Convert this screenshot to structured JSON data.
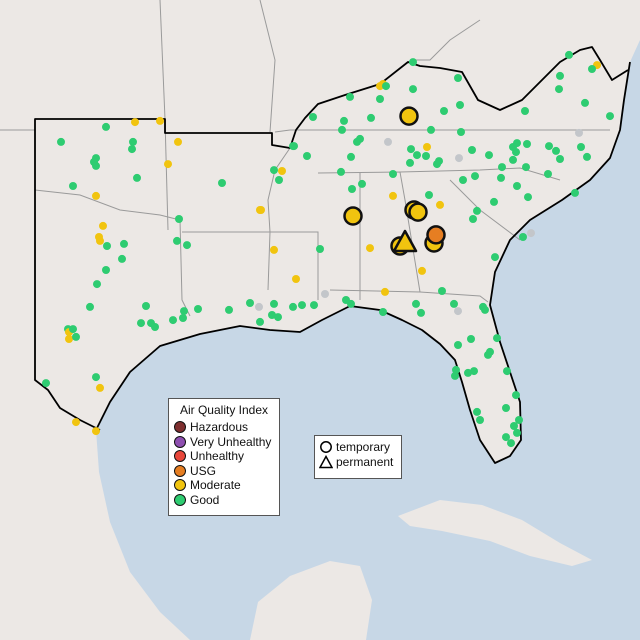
{
  "legend": {
    "title": "Air Quality Index",
    "categories": [
      {
        "key": "H",
        "label": "Hazardous",
        "color": "#7e2f2f"
      },
      {
        "key": "V",
        "label": "Very Unhealthy",
        "color": "#8e4fb0"
      },
      {
        "key": "U",
        "label": "Unhealthy",
        "color": "#e8473b"
      },
      {
        "key": "O",
        "label": "USG",
        "color": "#e67e22"
      },
      {
        "key": "Y",
        "label": "Moderate",
        "color": "#f1c40f"
      },
      {
        "key": "G",
        "label": "Good",
        "color": "#2ecc71"
      }
    ],
    "no_data_color": "#c3c6ca"
  },
  "type_legend": {
    "temporary": "temporary",
    "permanent": "permanent"
  },
  "colors": {
    "land": "#ece8e5",
    "water": "#c7d7e6",
    "coast": "#000000",
    "state_border": "#9a9a9a"
  },
  "monitors": [
    [
      -100.16,
      36.27,
      "G"
    ],
    [
      -99.0,
      36.43,
      "Y"
    ],
    [
      -98.0,
      36.47,
      "Y"
    ],
    [
      -101.96,
      35.77,
      "G"
    ],
    [
      -99.08,
      35.77,
      "G"
    ],
    [
      -99.12,
      35.53,
      "G"
    ],
    [
      -97.28,
      35.77,
      "Y"
    ],
    [
      -100.56,
      35.23,
      "G"
    ],
    [
      -100.64,
      35.1,
      "G"
    ],
    [
      -100.56,
      34.97,
      "G"
    ],
    [
      -97.68,
      35.03,
      "Y"
    ],
    [
      -98.92,
      34.57,
      "G"
    ],
    [
      -101.48,
      34.3,
      "G"
    ],
    [
      -100.56,
      33.97,
      "Y"
    ],
    [
      -95.52,
      34.4,
      "G"
    ],
    [
      -97.24,
      33.2,
      "G"
    ],
    [
      -100.28,
      32.97,
      "Y"
    ],
    [
      -100.44,
      32.6,
      "Y"
    ],
    [
      -100.4,
      32.47,
      "Y"
    ],
    [
      -100.12,
      32.3,
      "G"
    ],
    [
      -99.44,
      32.37,
      "G"
    ],
    [
      -99.52,
      31.87,
      "G"
    ],
    [
      -97.32,
      32.47,
      "G"
    ],
    [
      -96.92,
      32.33,
      "G"
    ],
    [
      -100.16,
      31.5,
      "G"
    ],
    [
      -100.52,
      31.03,
      "G"
    ],
    [
      -100.8,
      30.27,
      "G"
    ],
    [
      -98.56,
      30.3,
      "G"
    ],
    [
      -97.04,
      30.13,
      "G"
    ],
    [
      -96.48,
      30.2,
      "G"
    ],
    [
      -95.24,
      30.17,
      "G"
    ],
    [
      -94.4,
      30.4,
      "G"
    ],
    [
      -94.04,
      30.27,
      "N"
    ],
    [
      -93.44,
      30.37,
      "G"
    ],
    [
      -92.68,
      35.63,
      "G"
    ],
    [
      -93.44,
      34.83,
      "G"
    ],
    [
      -93.12,
      34.8,
      "Y"
    ],
    [
      -93.24,
      34.5,
      "G"
    ],
    [
      -94.0,
      33.5,
      "Y"
    ],
    [
      -93.44,
      32.17,
      "Y"
    ],
    [
      -92.56,
      31.2,
      "Y"
    ],
    [
      -98.76,
      29.73,
      "G"
    ],
    [
      -98.36,
      29.73,
      "G"
    ],
    [
      -98.2,
      29.6,
      "G"
    ],
    [
      -97.48,
      29.83,
      "G"
    ],
    [
      -97.08,
      29.9,
      "G"
    ],
    [
      -94.0,
      29.77,
      "G"
    ],
    [
      -93.52,
      30.0,
      "G"
    ],
    [
      -93.28,
      29.93,
      "G"
    ],
    [
      -92.68,
      30.27,
      "G"
    ],
    [
      -101.68,
      29.53,
      "G"
    ],
    [
      -101.64,
      29.43,
      "Y"
    ],
    [
      -101.64,
      29.2,
      "Y"
    ],
    [
      -101.36,
      29.27,
      "G"
    ],
    [
      -101.48,
      29.53,
      "G"
    ],
    [
      -100.56,
      27.93,
      "G"
    ],
    [
      -102.56,
      27.73,
      "G"
    ],
    [
      -100.4,
      27.57,
      "Y"
    ],
    [
      -101.36,
      26.43,
      "Y"
    ],
    [
      -100.56,
      26.13,
      "Y"
    ],
    [
      -87.88,
      38.43,
      "G"
    ],
    [
      -81.64,
      38.67,
      "G"
    ],
    [
      -80.52,
      38.33,
      "Y"
    ],
    [
      -80.72,
      38.2,
      "G"
    ],
    [
      -89.2,
      37.63,
      "Y"
    ],
    [
      -89.08,
      37.7,
      "Y"
    ],
    [
      -88.96,
      37.63,
      "G"
    ],
    [
      -86.08,
      37.9,
      "G"
    ],
    [
      -82.0,
      37.97,
      "G"
    ],
    [
      -87.88,
      37.53,
      "G"
    ],
    [
      -82.04,
      37.53,
      "G"
    ],
    [
      -90.4,
      37.27,
      "G"
    ],
    [
      -89.2,
      37.2,
      "G"
    ],
    [
      -86.0,
      37.0,
      "G"
    ],
    [
      -86.64,
      36.8,
      "G"
    ],
    [
      -81.0,
      37.07,
      "G"
    ],
    [
      -83.4,
      36.8,
      "G"
    ],
    [
      -80.0,
      36.63,
      "G"
    ],
    [
      -91.88,
      36.6,
      "G"
    ],
    [
      -89.56,
      36.57,
      "G"
    ],
    [
      -90.64,
      36.47,
      "G"
    ],
    [
      -90.72,
      36.17,
      "G"
    ],
    [
      -87.16,
      36.17,
      "G"
    ],
    [
      -85.96,
      36.1,
      "G"
    ],
    [
      -81.24,
      36.07,
      "N"
    ],
    [
      -90.0,
      35.87,
      "G"
    ],
    [
      -90.12,
      35.77,
      "G"
    ],
    [
      -88.88,
      35.77,
      "N"
    ],
    [
      -92.64,
      35.63,
      "G"
    ],
    [
      -87.32,
      35.6,
      "Y"
    ],
    [
      -87.96,
      35.53,
      "G"
    ],
    [
      -87.72,
      35.33,
      "G"
    ],
    [
      -87.36,
      35.3,
      "G"
    ],
    [
      -85.52,
      35.5,
      "G"
    ],
    [
      -83.72,
      35.73,
      "G"
    ],
    [
      -83.32,
      35.7,
      "G"
    ],
    [
      -83.88,
      35.6,
      "G"
    ],
    [
      -83.76,
      35.43,
      "G"
    ],
    [
      -82.44,
      35.63,
      "G"
    ],
    [
      -82.16,
      35.47,
      "G"
    ],
    [
      -81.16,
      35.6,
      "G"
    ],
    [
      -92.12,
      35.3,
      "G"
    ],
    [
      -90.36,
      35.27,
      "G"
    ],
    [
      -84.84,
      35.33,
      "G"
    ],
    [
      -86.04,
      35.23,
      "N"
    ],
    [
      -88.0,
      35.07,
      "G"
    ],
    [
      -86.84,
      35.13,
      "G"
    ],
    [
      -86.92,
      35.03,
      "G"
    ],
    [
      -83.88,
      35.17,
      "G"
    ],
    [
      -82.0,
      35.2,
      "G"
    ],
    [
      -80.92,
      35.27,
      "G"
    ],
    [
      -90.76,
      34.77,
      "G"
    ],
    [
      -88.68,
      34.7,
      "G"
    ],
    [
      -84.32,
      34.93,
      "G"
    ],
    [
      -83.36,
      34.93,
      "G"
    ],
    [
      -82.48,
      34.7,
      "G"
    ],
    [
      -85.88,
      34.5,
      "G"
    ],
    [
      -85.4,
      34.63,
      "G"
    ],
    [
      -84.36,
      34.57,
      "G"
    ],
    [
      -89.92,
      34.37,
      "G"
    ],
    [
      -90.32,
      34.2,
      "G"
    ],
    [
      -83.72,
      34.3,
      "G"
    ],
    [
      -81.4,
      34.07,
      "G"
    ],
    [
      -88.68,
      33.97,
      "Y"
    ],
    [
      -87.24,
      34.0,
      "G"
    ],
    [
      -83.28,
      33.93,
      "G"
    ],
    [
      -93.96,
      33.5,
      "Y"
    ],
    [
      -86.8,
      33.67,
      "Y"
    ],
    [
      -84.64,
      33.77,
      "G"
    ],
    [
      -85.32,
      33.47,
      "G"
    ],
    [
      -85.48,
      33.2,
      "G"
    ],
    [
      -83.16,
      32.73,
      "N"
    ],
    [
      -83.48,
      32.6,
      "G"
    ],
    [
      -89.6,
      32.23,
      "Y"
    ],
    [
      -91.6,
      32.2,
      "G"
    ],
    [
      -84.6,
      31.93,
      "G"
    ],
    [
      -87.52,
      31.47,
      "Y"
    ],
    [
      -89.0,
      30.77,
      "Y"
    ],
    [
      -86.72,
      30.8,
      "G"
    ],
    [
      -91.4,
      30.7,
      "N"
    ],
    [
      -92.32,
      30.33,
      "G"
    ],
    [
      -91.84,
      30.33,
      "G"
    ],
    [
      -90.56,
      30.5,
      "G"
    ],
    [
      -90.36,
      30.37,
      "G"
    ],
    [
      -87.76,
      30.37,
      "G"
    ],
    [
      -86.24,
      30.37,
      "G"
    ],
    [
      -86.08,
      30.13,
      "N"
    ],
    [
      -85.08,
      30.27,
      "G"
    ],
    [
      -89.08,
      30.1,
      "G"
    ],
    [
      -87.56,
      30.07,
      "G"
    ],
    [
      -85.0,
      30.17,
      "G"
    ],
    [
      -84.52,
      29.23,
      "G"
    ],
    [
      -85.56,
      29.2,
      "G"
    ],
    [
      -86.08,
      29.0,
      "G"
    ],
    [
      -84.8,
      28.77,
      "G"
    ],
    [
      -84.88,
      28.67,
      "G"
    ],
    [
      -84.12,
      28.13,
      "G"
    ],
    [
      -86.16,
      28.17,
      "G"
    ],
    [
      -86.2,
      27.97,
      "G"
    ],
    [
      -85.68,
      28.07,
      "G"
    ],
    [
      -85.44,
      28.13,
      "G"
    ],
    [
      -83.76,
      27.33,
      "G"
    ],
    [
      -84.16,
      26.9,
      "G"
    ],
    [
      -85.32,
      26.77,
      "G"
    ],
    [
      -85.2,
      26.5,
      "G"
    ],
    [
      -83.64,
      26.5,
      "G"
    ],
    [
      -83.84,
      26.3,
      "G"
    ],
    [
      -83.72,
      26.07,
      "G"
    ],
    [
      -84.16,
      25.93,
      "G"
    ],
    [
      -83.96,
      25.73,
      "G"
    ]
  ],
  "highlighted_monitors": [
    [
      -88.04,
      36.63,
      "Y",
      "temporary"
    ],
    [
      -90.28,
      33.3,
      "Y",
      "temporary"
    ],
    [
      -87.84,
      33.5,
      "Y",
      "temporary"
    ],
    [
      -87.68,
      33.43,
      "Y",
      "temporary"
    ],
    [
      -87.04,
      32.4,
      "Y",
      "temporary"
    ],
    [
      -86.96,
      32.67,
      "O",
      "temporary"
    ],
    [
      -88.4,
      32.3,
      "Y",
      "temporary"
    ],
    [
      -88.2,
      32.4,
      "Y",
      "permanent"
    ]
  ]
}
